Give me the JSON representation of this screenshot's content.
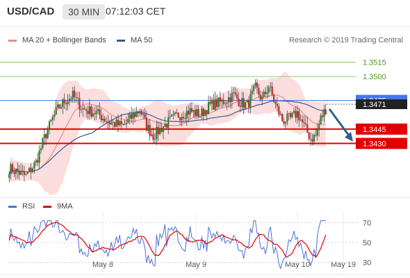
{
  "header": {
    "pair": "USD/CAD",
    "timeframe": "30 MIN",
    "time": "07:12:03 CET"
  },
  "legend": {
    "bollinger": "MA 20 + Bollinger Bands",
    "ma50": "MA 50",
    "credit": "Research © 2019 Trading Central"
  },
  "indicator_legend": {
    "rsi": "RSI",
    "ma": "9MA"
  },
  "colors": {
    "candle_up": "#2e7d32",
    "candle_down": "#c62828",
    "band_fill": "#fbd3d3",
    "ma20": "#f08a8a",
    "ma50": "#2f5f8f",
    "resistance": "#8fcf5f",
    "current": "#4477ee",
    "support": "#e00000",
    "rsi": "#4a6fd8",
    "rsi_ma": "#e00000"
  },
  "chart_data": [
    {
      "type": "candlestick",
      "title": "USD/CAD 30 MIN",
      "ylim": [
        1.3375,
        1.3535
      ],
      "x_tick_labels": [
        "May 8",
        "May 9",
        "May 10",
        "May 19"
      ],
      "levels": [
        {
          "value": 1.3515,
          "label": "1.3515",
          "kind": "resistance"
        },
        {
          "value": 1.35,
          "label": "1.3500",
          "kind": "resistance"
        },
        {
          "value": 1.3475,
          "label": "1.3475",
          "kind": "pivot"
        },
        {
          "value": 1.3471,
          "label": "1.3471",
          "kind": "last"
        },
        {
          "value": 1.3445,
          "label": "1.3445",
          "kind": "support"
        },
        {
          "value": 1.343,
          "label": "1.3430",
          "kind": "support"
        }
      ],
      "forecast_arrow": {
        "from": 1.3466,
        "to": 1.3432
      }
    },
    {
      "type": "line",
      "title": "RSI",
      "ylim": [
        20,
        80
      ],
      "y_ticks": [
        "70",
        "50",
        "30"
      ],
      "series": [
        {
          "name": "RSI"
        },
        {
          "name": "9MA"
        }
      ]
    }
  ]
}
